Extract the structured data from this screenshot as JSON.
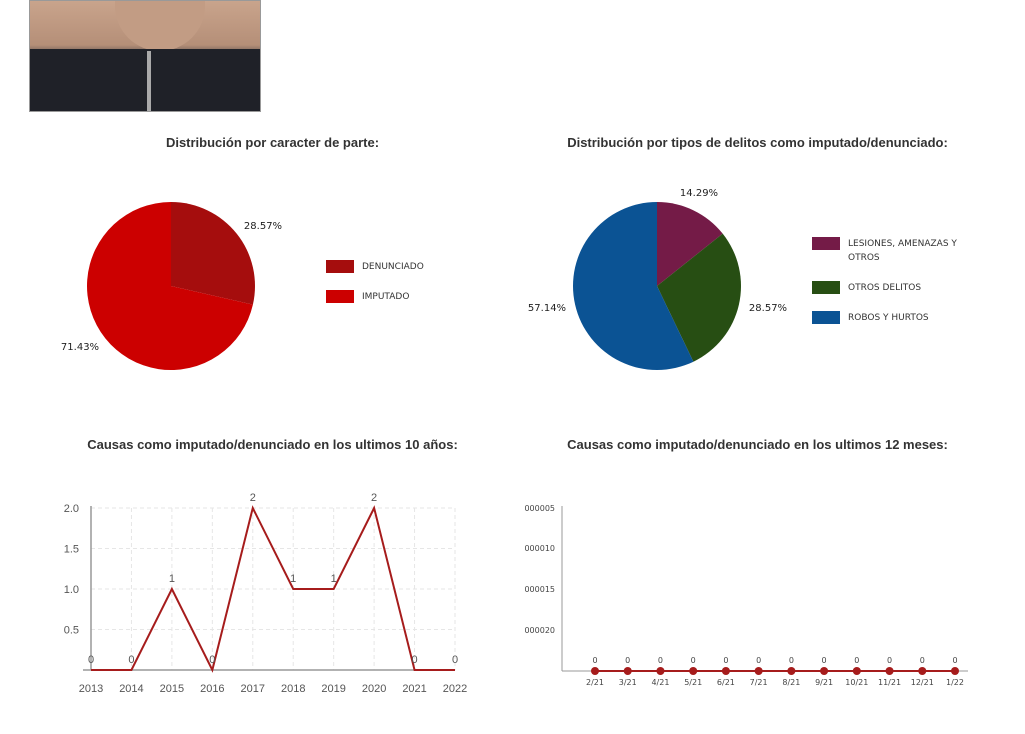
{
  "titles": {
    "pie1": "Distribución por caracter de parte:",
    "pie2": "Distribución por tipos de delitos como imputado/denunciado:",
    "line1": "Causas como imputado/denunciado en los ultimos 10 años:",
    "line2": "Causas como imputado/denunciado en los ultimos 12 meses:"
  },
  "chart_data": [
    {
      "type": "pie",
      "title": "Distribución por caracter de parte:",
      "labels": [
        "DENUNCIADO",
        "IMPUTADO"
      ],
      "values": [
        28.57,
        71.43
      ],
      "value_labels": [
        "28.57%",
        "71.43%"
      ],
      "colors": [
        "#a50d0d",
        "#cc0000"
      ],
      "legend": "right"
    },
    {
      "type": "pie",
      "title": "Distribución por tipos de delitos como imputado/denunciado:",
      "labels": [
        "LESIONES, AMENAZAS Y OTROS",
        "OTROS DELITOS",
        "ROBOS Y HURTOS"
      ],
      "legend_lines": [
        [
          "LESIONES, AMENAZAS Y",
          "OTROS"
        ],
        [
          "OTROS DELITOS"
        ],
        [
          "ROBOS Y HURTOS"
        ]
      ],
      "values": [
        14.29,
        28.57,
        57.14
      ],
      "value_labels": [
        "14.29%",
        "28.57%",
        "57.14%"
      ],
      "colors": [
        "#741b47",
        "#274e13",
        "#0b5394"
      ],
      "legend": "right"
    },
    {
      "type": "line",
      "title": "Causas como imputado/denunciado en los ultimos 10 años:",
      "x": [
        "2013",
        "2014",
        "2015",
        "2016",
        "2017",
        "2018",
        "2019",
        "2020",
        "2021",
        "2022"
      ],
      "values": [
        0,
        0,
        1,
        0,
        2,
        1,
        1,
        2,
        0,
        0
      ],
      "point_labels": [
        "0",
        "0",
        "1",
        "0",
        "2",
        "1",
        "1",
        "2",
        "0",
        "0"
      ],
      "yticks": [
        "0.5",
        "1.0",
        "1.5",
        "2.0"
      ],
      "ylim": [
        0,
        2
      ],
      "color": "#a61c1c",
      "grid": true
    },
    {
      "type": "line",
      "title": "Causas como imputado/denunciado en los ultimos 12 meses:",
      "x": [
        "2/21",
        "3/21",
        "4/21",
        "5/21",
        "6/21",
        "7/21",
        "8/21",
        "9/21",
        "10/21",
        "11/21",
        "12/21",
        "1/22"
      ],
      "values": [
        0,
        0,
        0,
        0,
        0,
        0,
        0,
        0,
        0,
        0,
        0,
        0
      ],
      "point_labels": [
        "0",
        "0",
        "0",
        "0",
        "0",
        "0",
        "0",
        "0",
        "0",
        "0",
        "0",
        "0"
      ],
      "yticks": [
        "000005",
        "000010",
        "000015",
        "000020"
      ],
      "color": "#a61c1c",
      "grid": false
    }
  ]
}
